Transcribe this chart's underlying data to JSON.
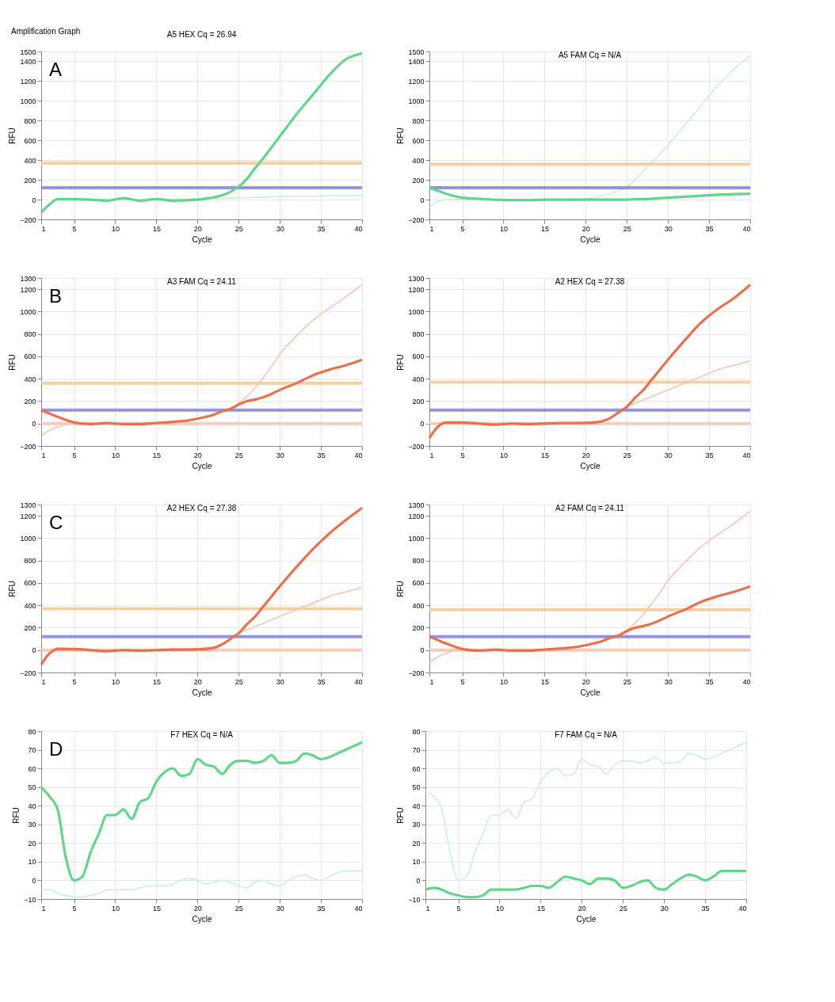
{
  "chart_data": [
    {
      "type": "line",
      "title": "A5 HEX Cq = 26.94",
      "xlabel": "Cycle",
      "ylabel": "RFU",
      "annotations": [
        "Amplification Graph",
        "A"
      ],
      "grid": true,
      "marker": "none",
      "line_style": "solid",
      "x": [
        1,
        2,
        3,
        5,
        7,
        9,
        11,
        13,
        15,
        17,
        19,
        21,
        22,
        23,
        24,
        25,
        26,
        27,
        28,
        29,
        30,
        32,
        34,
        36,
        38,
        40
      ],
      "xlim": [
        1,
        40
      ],
      "xticks": [
        1,
        5,
        10,
        15,
        20,
        25,
        30,
        35,
        40
      ],
      "ylim": [
        -200,
        1500
      ],
      "yticks": [
        -200,
        0,
        200,
        400,
        600,
        800,
        1000,
        1200,
        1400,
        1500
      ],
      "series": [
        {
          "color": "#c9f0d6",
          "values": [
            -130,
            -50,
            0,
            5,
            5,
            5,
            5,
            5,
            5,
            5,
            5,
            10,
            10,
            15,
            15,
            20,
            20,
            25,
            25,
            30,
            30,
            35,
            35,
            40,
            40,
            45
          ]
        },
        {
          "color": "#5fd68a",
          "values": [
            -130,
            -50,
            5,
            5,
            0,
            -10,
            15,
            -10,
            5,
            -10,
            -5,
            10,
            25,
            45,
            80,
            130,
            210,
            320,
            420,
            530,
            640,
            860,
            1060,
            1260,
            1420,
            1480
          ]
        }
      ],
      "ref_lines": [
        {
          "axis": "y",
          "value": 120,
          "color": "#7f82d8"
        },
        {
          "axis": "y",
          "value": 370,
          "color": "#f5c790"
        }
      ]
    },
    {
      "type": "line",
      "title": "A5 FAM Cq = N/A",
      "xlabel": "Cycle",
      "ylabel": "RFU",
      "grid": true,
      "marker": "none",
      "line_style": "solid",
      "x": [
        1,
        2,
        3,
        5,
        7,
        9,
        11,
        13,
        15,
        17,
        19,
        21,
        22,
        23,
        24,
        25,
        26,
        27,
        28,
        29,
        30,
        32,
        34,
        36,
        38,
        40
      ],
      "xlim": [
        1,
        40
      ],
      "xticks": [
        1,
        5,
        10,
        15,
        20,
        25,
        30,
        35,
        40
      ],
      "ylim": [
        -200,
        1500
      ],
      "yticks": [
        -200,
        0,
        200,
        400,
        600,
        800,
        1000,
        1200,
        1400,
        1500
      ],
      "series": [
        {
          "color": "#c9f0d6",
          "values": [
            -80,
            -20,
            0,
            5,
            0,
            -5,
            0,
            0,
            0,
            0,
            5,
            20,
            40,
            60,
            90,
            130,
            200,
            290,
            370,
            460,
            550,
            750,
            950,
            1150,
            1320,
            1460
          ]
        },
        {
          "color": "#5fd68a",
          "values": [
            120,
            90,
            60,
            20,
            10,
            0,
            -5,
            -5,
            0,
            0,
            0,
            0,
            0,
            0,
            0,
            0,
            5,
            5,
            10,
            15,
            20,
            30,
            40,
            50,
            55,
            60
          ]
        }
      ],
      "ref_lines": [
        {
          "axis": "y",
          "value": 120,
          "color": "#7f82d8"
        },
        {
          "axis": "y",
          "value": 360,
          "color": "#f5c790"
        }
      ]
    },
    {
      "type": "line",
      "title": "A3 FAM Cq = 24.11",
      "xlabel": "Cycle",
      "ylabel": "RFU",
      "annotations": [
        "B"
      ],
      "grid": true,
      "marker": "none",
      "line_style": "solid",
      "x": [
        1,
        2,
        3,
        5,
        7,
        9,
        11,
        13,
        15,
        17,
        19,
        21,
        22,
        23,
        24,
        25,
        26,
        27,
        28,
        29,
        30,
        32,
        34,
        36,
        38,
        40
      ],
      "xlim": [
        1,
        40
      ],
      "xticks": [
        1,
        5,
        10,
        15,
        20,
        25,
        30,
        35,
        40
      ],
      "ylim": [
        -200,
        1300
      ],
      "yticks": [
        -200,
        0,
        200,
        400,
        600,
        800,
        1000,
        1200,
        1300
      ],
      "series": [
        {
          "color": "#f6c3b2",
          "values": [
            -110,
            -60,
            -30,
            10,
            0,
            0,
            0,
            0,
            5,
            10,
            25,
            60,
            80,
            110,
            140,
            180,
            240,
            320,
            410,
            510,
            620,
            780,
            920,
            1030,
            1130,
            1240
          ]
        },
        {
          "color": "#e8704a",
          "values": [
            120,
            90,
            60,
            10,
            -5,
            5,
            -5,
            -5,
            5,
            15,
            30,
            60,
            80,
            110,
            130,
            170,
            200,
            215,
            235,
            265,
            300,
            360,
            430,
            480,
            520,
            570
          ]
        }
      ],
      "ref_lines": [
        {
          "axis": "y",
          "value": 0,
          "color": "#f6c3b2"
        },
        {
          "axis": "y",
          "value": 120,
          "color": "#7f82d8"
        },
        {
          "axis": "y",
          "value": 360,
          "color": "#f5c790"
        }
      ]
    },
    {
      "type": "line",
      "title": "A2 HEX Cq = 27.38",
      "xlabel": "Cycle",
      "ylabel": "RFU",
      "grid": true,
      "marker": "none",
      "line_style": "solid",
      "x": [
        1,
        2,
        3,
        5,
        7,
        9,
        11,
        13,
        15,
        17,
        19,
        21,
        22,
        23,
        24,
        25,
        26,
        27,
        28,
        29,
        30,
        32,
        34,
        36,
        38,
        40
      ],
      "xlim": [
        1,
        40
      ],
      "xticks": [
        1,
        5,
        10,
        15,
        20,
        25,
        30,
        35,
        40
      ],
      "ylim": [
        -200,
        1300
      ],
      "yticks": [
        -200,
        0,
        200,
        400,
        600,
        800,
        1000,
        1200,
        1300
      ],
      "series": [
        {
          "color": "#f6c3b2",
          "values": [
            -130,
            -30,
            10,
            10,
            0,
            -10,
            0,
            -5,
            0,
            5,
            5,
            10,
            20,
            50,
            100,
            150,
            180,
            210,
            240,
            270,
            300,
            360,
            420,
            480,
            520,
            560
          ]
        },
        {
          "color": "#e8704a",
          "values": [
            -130,
            -30,
            10,
            10,
            0,
            -10,
            0,
            -5,
            0,
            5,
            5,
            10,
            20,
            50,
            100,
            150,
            230,
            300,
            390,
            480,
            570,
            740,
            900,
            1020,
            1120,
            1240
          ]
        }
      ],
      "ref_lines": [
        {
          "axis": "y",
          "value": 0,
          "color": "#f6c3b2"
        },
        {
          "axis": "y",
          "value": 120,
          "color": "#7f82d8"
        },
        {
          "axis": "y",
          "value": 370,
          "color": "#f5c790"
        }
      ]
    },
    {
      "type": "line",
      "title": "A2 HEX Cq = 27.38",
      "xlabel": "Cycle",
      "ylabel": "RFU",
      "annotations": [
        "C"
      ],
      "grid": true,
      "marker": "none",
      "line_style": "solid",
      "x": [
        1,
        2,
        3,
        5,
        7,
        9,
        11,
        13,
        15,
        17,
        19,
        21,
        22,
        23,
        24,
        25,
        26,
        27,
        28,
        29,
        30,
        32,
        34,
        36,
        38,
        40
      ],
      "xlim": [
        1,
        40
      ],
      "xticks": [
        1,
        5,
        10,
        15,
        20,
        25,
        30,
        35,
        40
      ],
      "ylim": [
        -200,
        1300
      ],
      "yticks": [
        -200,
        0,
        200,
        400,
        600,
        800,
        1000,
        1200,
        1300
      ],
      "series": [
        {
          "color": "#f6c3b2",
          "values": [
            -130,
            -30,
            20,
            10,
            0,
            -10,
            0,
            -5,
            0,
            10,
            10,
            20,
            30,
            60,
            100,
            150,
            180,
            210,
            240,
            270,
            300,
            360,
            420,
            480,
            520,
            560
          ]
        },
        {
          "color": "#e8704a",
          "values": [
            -130,
            -30,
            10,
            10,
            0,
            -10,
            0,
            -5,
            0,
            5,
            5,
            10,
            20,
            50,
            100,
            150,
            230,
            300,
            390,
            480,
            570,
            740,
            900,
            1040,
            1160,
            1270
          ]
        }
      ],
      "ref_lines": [
        {
          "axis": "y",
          "value": 0,
          "color": "#f6c3b2"
        },
        {
          "axis": "y",
          "value": 120,
          "color": "#7f82d8"
        },
        {
          "axis": "y",
          "value": 370,
          "color": "#f5c790"
        }
      ]
    },
    {
      "type": "line",
      "title": "A2 FAM Cq = 24.11",
      "xlabel": "Cycle",
      "ylabel": "RFU",
      "grid": true,
      "marker": "none",
      "line_style": "solid",
      "x": [
        1,
        2,
        3,
        5,
        7,
        9,
        11,
        13,
        15,
        17,
        19,
        21,
        22,
        23,
        24,
        25,
        26,
        27,
        28,
        29,
        30,
        32,
        34,
        36,
        38,
        40
      ],
      "xlim": [
        1,
        40
      ],
      "xticks": [
        1,
        5,
        10,
        15,
        20,
        25,
        30,
        35,
        40
      ],
      "ylim": [
        -200,
        1300
      ],
      "yticks": [
        -200,
        0,
        200,
        400,
        600,
        800,
        1000,
        1200,
        1300
      ],
      "series": [
        {
          "color": "#f6c3b2",
          "values": [
            -110,
            -60,
            -30,
            10,
            0,
            0,
            0,
            0,
            5,
            10,
            25,
            60,
            80,
            110,
            140,
            180,
            240,
            320,
            410,
            510,
            620,
            780,
            920,
            1030,
            1130,
            1240
          ]
        },
        {
          "color": "#e8704a",
          "values": [
            120,
            90,
            60,
            10,
            -5,
            5,
            -5,
            -5,
            5,
            15,
            30,
            60,
            80,
            110,
            130,
            170,
            200,
            215,
            235,
            265,
            300,
            360,
            430,
            480,
            520,
            570
          ]
        }
      ],
      "ref_lines": [
        {
          "axis": "y",
          "value": 0,
          "color": "#f6c3b2"
        },
        {
          "axis": "y",
          "value": 120,
          "color": "#7f82d8"
        },
        {
          "axis": "y",
          "value": 360,
          "color": "#f5c790"
        }
      ]
    },
    {
      "type": "line",
      "title": "F7 HEX Cq = N/A",
      "xlabel": "Cycle",
      "ylabel": "RFU",
      "annotations": [
        "D"
      ],
      "grid": true,
      "marker": "none",
      "line_style": "solid",
      "x": [
        1,
        2,
        3,
        4,
        5,
        6,
        7,
        8,
        9,
        10,
        11,
        12,
        13,
        14,
        15,
        16,
        17,
        18,
        19,
        20,
        21,
        22,
        23,
        24,
        25,
        26,
        27,
        28,
        29,
        30,
        31,
        32,
        33,
        34,
        35,
        36,
        37,
        38,
        39,
        40
      ],
      "xlim": [
        1,
        40
      ],
      "xticks": [
        1,
        5,
        10,
        15,
        20,
        25,
        30,
        35,
        40
      ],
      "ylim": [
        -10,
        80
      ],
      "yticks": [
        -10,
        0,
        10,
        20,
        30,
        40,
        50,
        60,
        70,
        80
      ],
      "series": [
        {
          "color": "#c9f0d6",
          "values": [
            -5,
            -5,
            -7,
            -8,
            -9,
            -9,
            -8,
            -7,
            -5,
            -5,
            -5,
            -5,
            -4,
            -3,
            -3,
            -3,
            -2,
            0,
            1,
            0,
            -2,
            -1,
            0,
            -1,
            -3,
            -4,
            -1,
            0,
            -2,
            -3,
            0,
            2,
            3,
            1,
            0,
            2,
            4,
            5,
            5,
            5
          ]
        },
        {
          "color": "#5fd68a",
          "values": [
            50,
            45,
            38,
            12,
            0,
            2,
            15,
            25,
            35,
            35,
            38,
            33,
            42,
            44,
            53,
            58,
            60,
            56,
            57,
            65,
            62,
            61,
            57,
            62,
            64,
            64,
            63,
            64,
            67,
            63,
            63,
            64,
            68,
            67,
            65,
            66,
            68,
            70,
            72,
            74
          ]
        }
      ]
    },
    {
      "type": "line",
      "title": "F7 FAM Cq = N/A",
      "xlabel": "Cycle",
      "ylabel": "RFU",
      "grid": true,
      "marker": "none",
      "line_style": "solid",
      "x": [
        1,
        2,
        3,
        4,
        5,
        6,
        7,
        8,
        9,
        10,
        11,
        12,
        13,
        14,
        15,
        16,
        17,
        18,
        19,
        20,
        21,
        22,
        23,
        24,
        25,
        26,
        27,
        28,
        29,
        30,
        31,
        32,
        33,
        34,
        35,
        36,
        37,
        38,
        39,
        40
      ],
      "xlim": [
        1,
        40
      ],
      "xticks": [
        1,
        5,
        10,
        15,
        20,
        25,
        30,
        35,
        40
      ],
      "ylim": [
        -10,
        80
      ],
      "yticks": [
        -10,
        0,
        10,
        20,
        30,
        40,
        50,
        60,
        70,
        80
      ],
      "series": [
        {
          "color": "#c9f0d6",
          "values": [
            48,
            45,
            38,
            15,
            0,
            2,
            15,
            25,
            35,
            35,
            38,
            33,
            42,
            44,
            53,
            58,
            60,
            56,
            57,
            65,
            62,
            61,
            57,
            62,
            64,
            64,
            63,
            64,
            66,
            63,
            63,
            64,
            68,
            67,
            65,
            66,
            68,
            70,
            72,
            74
          ]
        },
        {
          "color": "#5fd68a",
          "values": [
            -5,
            -4,
            -5,
            -7,
            -8,
            -9,
            -9,
            -8,
            -5,
            -5,
            -5,
            -5,
            -4,
            -3,
            -3,
            -4,
            -1,
            2,
            1,
            0,
            -2,
            1,
            1,
            0,
            -4,
            -3,
            -1,
            0,
            -4,
            -5,
            -2,
            1,
            3,
            2,
            0,
            2,
            5,
            5,
            5,
            5
          ]
        }
      ]
    }
  ]
}
